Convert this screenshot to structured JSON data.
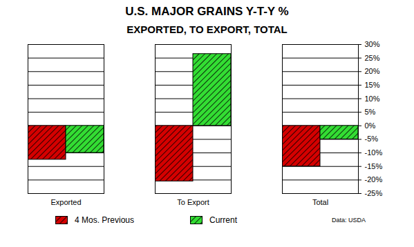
{
  "chart_data": {
    "type": "bar",
    "title": "U.S. MAJOR GRAINS Y-T-Y %",
    "subtitle": "EXPORTED, TO EXPORT, TOTAL",
    "categories": [
      "Exported",
      "To Export",
      "Total"
    ],
    "series": [
      {
        "name": "4 Mos. Previous",
        "color": "#d40000",
        "values": [
          -12.5,
          -20.5,
          -15
        ]
      },
      {
        "name": "Current",
        "color": "#33dd33",
        "values": [
          -10,
          26.5,
          -5
        ]
      }
    ],
    "ylim": [
      -25,
      30
    ],
    "yticks": [
      {
        "value": -25,
        "label": "-25%"
      },
      {
        "value": -20,
        "label": "-20%"
      },
      {
        "value": -15,
        "label": "-15%"
      },
      {
        "value": -10,
        "label": "-10%"
      },
      {
        "value": -5,
        "label": "-5%"
      },
      {
        "value": 0,
        "label": "0%"
      },
      {
        "value": 5,
        "label": "5%"
      },
      {
        "value": 10,
        "label": "10%"
      },
      {
        "value": 15,
        "label": "15%"
      },
      {
        "value": 20,
        "label": "20%"
      },
      {
        "value": 25,
        "label": "25%"
      },
      {
        "value": 30,
        "label": "30%"
      }
    ],
    "grid": true,
    "legend": "bottom",
    "source": "Data: USDA"
  }
}
